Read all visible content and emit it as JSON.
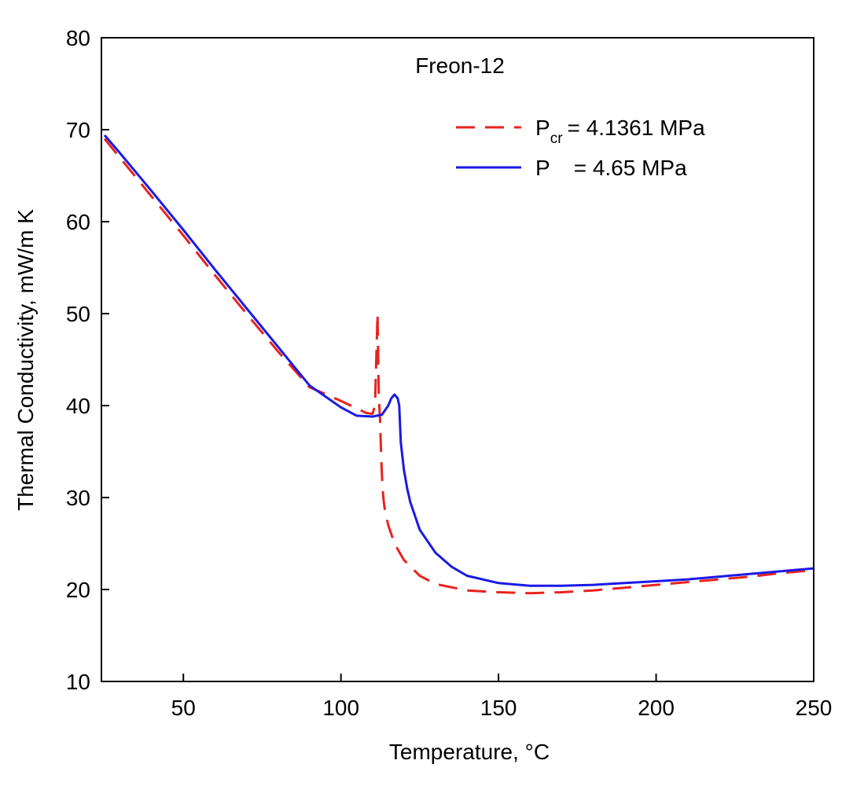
{
  "chart_data": {
    "type": "line",
    "title": "Freon-12",
    "xlabel": "Temperature, °C",
    "ylabel": "Thermal Conductivity, mW/m K",
    "xlim": [
      24,
      250
    ],
    "ylim": [
      10,
      80
    ],
    "xticks": [
      50,
      100,
      150,
      200,
      250
    ],
    "yticks": [
      10,
      20,
      30,
      40,
      50,
      60,
      70,
      80
    ],
    "grid": false,
    "legend_position": "top-right",
    "series": [
      {
        "label_main": "P",
        "label_sub": "cr",
        "label_value": "=  4.1361  MPa",
        "style": "dashed",
        "color": "#e8231e",
        "x": [
          25,
          30,
          40,
          50,
          60,
          70,
          80,
          90,
          100,
          105,
          108,
          110,
          110.8,
          111.2,
          111.6,
          112,
          112.4,
          112.8,
          113.2,
          113.6,
          114,
          115,
          117,
          120,
          125,
          130,
          140,
          150,
          160,
          170,
          180,
          190,
          200,
          210,
          220,
          230,
          240,
          250
        ],
        "y": [
          69.0,
          66.9,
          62.7,
          58.5,
          54.2,
          50.0,
          45.9,
          42.0,
          40.5,
          39.7,
          39.2,
          39.1,
          40.0,
          45.0,
          50.0,
          41.0,
          38.5,
          34.0,
          31.0,
          29.5,
          28.5,
          27.0,
          25.0,
          23.2,
          21.5,
          20.6,
          19.9,
          19.7,
          19.6,
          19.7,
          19.9,
          20.2,
          20.5,
          20.8,
          21.1,
          21.4,
          21.8,
          22.1
        ]
      },
      {
        "label_main": "P",
        "label_sub": "",
        "label_value": "=  4.65      MPa",
        "style": "solid",
        "color": "#1a1ae6",
        "x": [
          25,
          30,
          40,
          50,
          60,
          70,
          80,
          90,
          100,
          105,
          110,
          113,
          115,
          116,
          117,
          118,
          118.5,
          119,
          120,
          121,
          122,
          125,
          130,
          135,
          140,
          150,
          160,
          170,
          180,
          190,
          200,
          210,
          220,
          230,
          240,
          250
        ],
        "y": [
          69.4,
          67.4,
          63.3,
          59.1,
          54.8,
          50.6,
          46.4,
          42.2,
          39.8,
          38.9,
          38.8,
          39.0,
          40.0,
          40.8,
          41.2,
          40.8,
          40.0,
          36.0,
          33.0,
          31.0,
          29.5,
          26.5,
          24.0,
          22.5,
          21.5,
          20.7,
          20.4,
          20.4,
          20.5,
          20.7,
          20.9,
          21.1,
          21.4,
          21.7,
          22.0,
          22.3
        ]
      }
    ]
  }
}
